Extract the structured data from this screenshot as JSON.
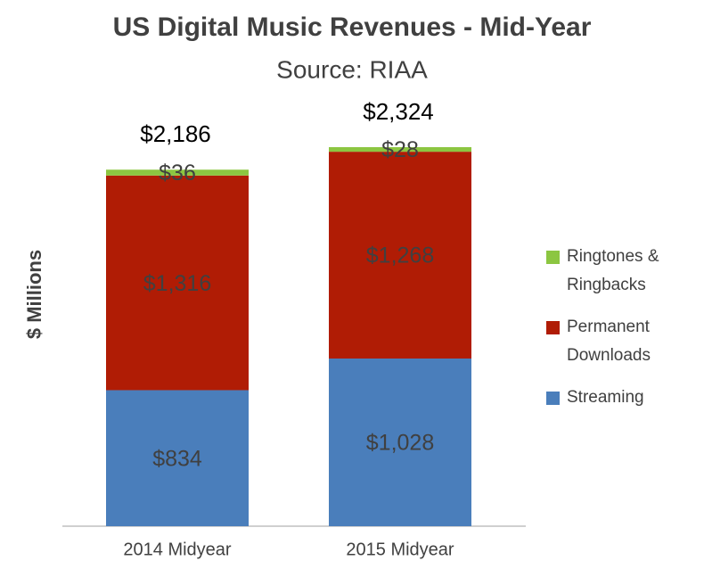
{
  "chart_data": {
    "type": "bar",
    "stacked": true,
    "title": "US Digital Music Revenues - Mid-Year",
    "subtitle": "Source: RIAA",
    "y_label": "$ Millions",
    "categories": [
      "2014 Midyear",
      "2015 Midyear"
    ],
    "series": [
      {
        "name": "Streaming",
        "color": "#4a7ebb",
        "values": [
          834,
          1028
        ],
        "value_labels": [
          "$834",
          "$1,028"
        ]
      },
      {
        "name": "Permanent Downloads",
        "color": "#b01c05",
        "values": [
          1316,
          1268
        ],
        "value_labels": [
          "$1,316",
          "$1,268"
        ]
      },
      {
        "name": "Ringtones & Ringbacks",
        "color": "#8cc641",
        "values": [
          36,
          28
        ],
        "value_labels": [
          "$36",
          "$28"
        ]
      }
    ],
    "totals": [
      2186,
      2324
    ],
    "total_labels": [
      "$2,186",
      "$2,324"
    ],
    "legend": "right"
  }
}
